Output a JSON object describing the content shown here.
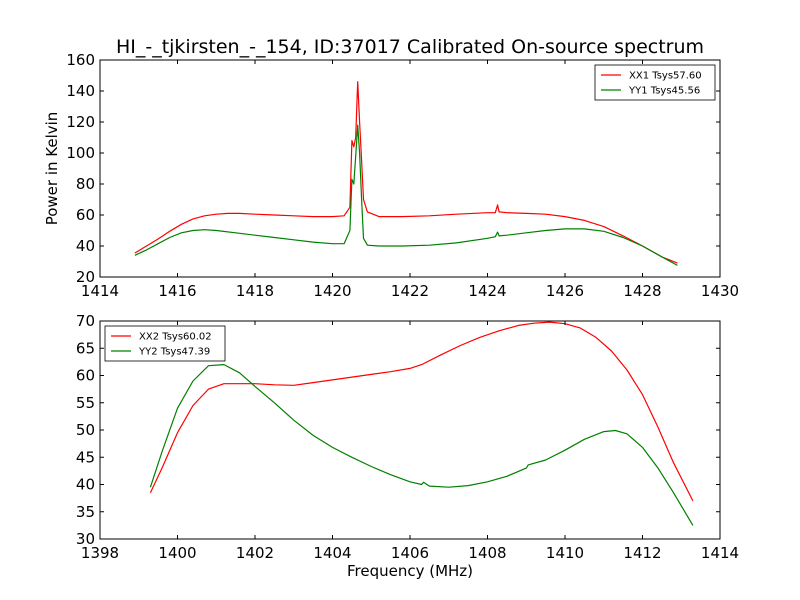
{
  "figure": {
    "title": "HI_-_tjkirsten_-_154, ID:37017 Calibrated On-source spectrum",
    "xlabel": "Frequency (MHz)"
  },
  "chart_data": [
    {
      "type": "line",
      "xlabel": "",
      "ylabel": "Power in Kelvin",
      "xlim": [
        1414,
        1430
      ],
      "ylim": [
        20,
        160
      ],
      "xticks": [
        1414,
        1416,
        1418,
        1420,
        1422,
        1424,
        1426,
        1428,
        1430
      ],
      "yticks": [
        20,
        40,
        60,
        80,
        100,
        120,
        140,
        160
      ],
      "grid": false,
      "legend": "top-right",
      "series": [
        {
          "name": "XX1 Tsys57.60",
          "color": "#ff0000",
          "x": [
            1414.9,
            1415.2,
            1415.5,
            1415.8,
            1416.1,
            1416.4,
            1416.7,
            1417.0,
            1417.3,
            1417.6,
            1418.0,
            1418.5,
            1419.0,
            1419.5,
            1420.0,
            1420.3,
            1420.45,
            1420.5,
            1420.55,
            1420.6,
            1420.65,
            1420.7,
            1420.75,
            1420.8,
            1420.9,
            1421.2,
            1421.8,
            1422.5,
            1423.2,
            1424.0,
            1424.2,
            1424.26,
            1424.3,
            1424.5,
            1425.0,
            1425.5,
            1426.0,
            1426.5,
            1427.0,
            1427.5,
            1428.0,
            1428.5,
            1428.9
          ],
          "y": [
            35.5,
            40,
            44.5,
            49.5,
            54,
            57.5,
            59.5,
            60.5,
            61,
            61,
            60.5,
            60,
            59.5,
            59,
            59,
            59.5,
            65,
            108,
            104,
            110,
            146,
            120,
            95,
            70,
            62,
            59,
            59,
            59.5,
            60.5,
            61.5,
            61.5,
            66.5,
            62,
            61.5,
            61,
            60.5,
            59,
            56.5,
            52.5,
            46.5,
            40,
            33,
            29
          ]
        },
        {
          "name": "YY1 Tsys45.56",
          "color": "#008000",
          "x": [
            1414.9,
            1415.2,
            1415.5,
            1415.8,
            1416.1,
            1416.4,
            1416.7,
            1417.0,
            1417.5,
            1418.0,
            1418.5,
            1419.0,
            1419.5,
            1420.0,
            1420.3,
            1420.45,
            1420.5,
            1420.55,
            1420.6,
            1420.65,
            1420.7,
            1420.75,
            1420.8,
            1420.9,
            1421.2,
            1421.8,
            1422.5,
            1423.2,
            1424.0,
            1424.2,
            1424.26,
            1424.3,
            1424.5,
            1425.0,
            1425.5,
            1426.0,
            1426.5,
            1427.0,
            1427.5,
            1428.0,
            1428.5,
            1428.9
          ],
          "y": [
            34,
            37.5,
            41.5,
            45.5,
            48.5,
            50,
            50.5,
            50,
            48.5,
            47,
            45.5,
            44,
            42.5,
            41.5,
            41.5,
            50,
            83,
            80,
            98,
            118,
            100,
            70,
            45,
            40.5,
            40,
            40,
            40.5,
            42,
            45,
            46,
            49,
            46.5,
            47,
            48.5,
            50,
            51,
            51,
            49.5,
            45.5,
            40,
            33,
            27.5
          ]
        }
      ]
    },
    {
      "type": "line",
      "xlabel": "Frequency (MHz)",
      "ylabel": "",
      "xlim": [
        1398,
        1414
      ],
      "ylim": [
        30,
        70
      ],
      "xticks": [
        1398,
        1400,
        1402,
        1404,
        1406,
        1408,
        1410,
        1412,
        1414
      ],
      "yticks": [
        30,
        35,
        40,
        45,
        50,
        55,
        60,
        65,
        70
      ],
      "grid": false,
      "legend": "top-left",
      "series": [
        {
          "name": "XX2 Tsys60.02",
          "color": "#ff0000",
          "x": [
            1399.3,
            1399.6,
            1400.0,
            1400.4,
            1400.8,
            1401.2,
            1401.6,
            1402.0,
            1402.5,
            1403.0,
            1403.5,
            1404.0,
            1404.5,
            1405.0,
            1405.5,
            1406.0,
            1406.3,
            1406.8,
            1407.3,
            1407.8,
            1408.3,
            1408.8,
            1409.2,
            1409.6,
            1410.0,
            1410.4,
            1410.8,
            1411.2,
            1411.6,
            1412.0,
            1412.4,
            1412.8,
            1413.3
          ],
          "y": [
            38.5,
            43,
            49.5,
            54.5,
            57.5,
            58.5,
            58.5,
            58.5,
            58.3,
            58.2,
            58.7,
            59.2,
            59.7,
            60.2,
            60.7,
            61.3,
            62,
            63.8,
            65.5,
            67,
            68.2,
            69.2,
            69.6,
            69.8,
            69.5,
            68.7,
            67,
            64.5,
            61,
            56.5,
            50.5,
            44,
            37
          ]
        },
        {
          "name": "YY2 Tsys47.39",
          "color": "#008000",
          "x": [
            1399.3,
            1399.6,
            1400.0,
            1400.4,
            1400.8,
            1401.2,
            1401.6,
            1402.0,
            1402.5,
            1403.0,
            1403.5,
            1404.0,
            1404.5,
            1405.0,
            1405.5,
            1406.0,
            1406.3,
            1406.35,
            1406.5,
            1407.0,
            1407.5,
            1408.0,
            1408.5,
            1409.0,
            1409.05,
            1409.5,
            1410.0,
            1410.5,
            1411.0,
            1411.3,
            1411.6,
            1412.0,
            1412.4,
            1412.8,
            1413.3
          ],
          "y": [
            39.5,
            46,
            54,
            59,
            61.8,
            62,
            60.5,
            58,
            55,
            51.8,
            49,
            46.8,
            45,
            43.3,
            41.8,
            40.5,
            40,
            40.4,
            39.7,
            39.5,
            39.8,
            40.5,
            41.5,
            43,
            43.6,
            44.5,
            46.3,
            48.3,
            49.7,
            49.9,
            49.3,
            46.8,
            43,
            38.5,
            32.5
          ]
        }
      ]
    }
  ]
}
